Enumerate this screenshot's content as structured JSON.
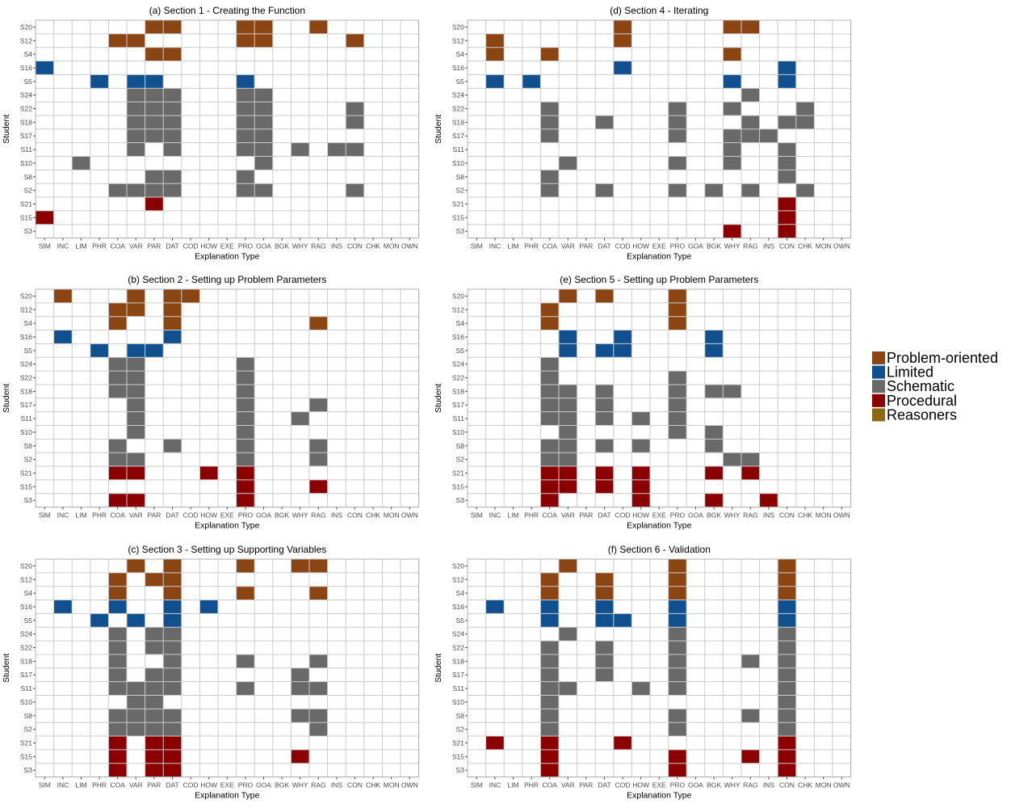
{
  "chart_data": {
    "type": "heatmap",
    "xlabel": "Explanation Type",
    "ylabel": "Student",
    "x_categories": [
      "SIM",
      "INC",
      "LIM",
      "PHR",
      "COA",
      "VAR",
      "PAR",
      "DAT",
      "COD",
      "HOW",
      "EXE",
      "PRO",
      "GOA",
      "BGK",
      "WHY",
      "RAG",
      "INS",
      "CON",
      "CHK",
      "MON",
      "OWN"
    ],
    "y_categories": [
      "S20",
      "S12",
      "S4",
      "S16",
      "S5",
      "S24",
      "S22",
      "S18",
      "S17",
      "S11",
      "S10",
      "S8",
      "S2",
      "S21",
      "S15",
      "S3"
    ],
    "legend": {
      "placement": "right",
      "items": [
        {
          "key": "P",
          "label": "Problem-oriented",
          "color": "#8b4513"
        },
        {
          "key": "L",
          "label": "Limited",
          "color": "#10508f"
        },
        {
          "key": "S",
          "label": "Schematic",
          "color": "#696969"
        },
        {
          "key": "R",
          "label": "Procedural",
          "color": "#8b0000"
        },
        {
          "key": "N",
          "label": "Reasoners",
          "color": "#8b6914"
        }
      ]
    },
    "panels": [
      {
        "title": "(a) Section 1 - Creating the Function",
        "rows": {
          "S20": {
            "PAR": "P",
            "DAT": "P",
            "PRO": "P",
            "GOA": "P",
            "RAG": "P"
          },
          "S12": {
            "COA": "P",
            "VAR": "P",
            "PRO": "P",
            "GOA": "P",
            "CON": "P"
          },
          "S4": {
            "PAR": "P",
            "DAT": "P"
          },
          "S16": {
            "SIM": "L"
          },
          "S5": {
            "PHR": "L",
            "VAR": "L",
            "PAR": "L",
            "PRO": "L"
          },
          "S24": {
            "VAR": "S",
            "PAR": "S",
            "DAT": "S",
            "PRO": "S",
            "GOA": "S"
          },
          "S22": {
            "VAR": "S",
            "PAR": "S",
            "DAT": "S",
            "PRO": "S",
            "GOA": "S",
            "CON": "S"
          },
          "S18": {
            "VAR": "S",
            "PAR": "S",
            "DAT": "S",
            "PRO": "S",
            "GOA": "S",
            "CON": "S"
          },
          "S17": {
            "VAR": "S",
            "PAR": "S",
            "DAT": "S",
            "PRO": "S",
            "GOA": "S"
          },
          "S11": {
            "VAR": "S",
            "DAT": "S",
            "PRO": "S",
            "GOA": "S",
            "WHY": "S",
            "INS": "S",
            "CON": "S"
          },
          "S10": {
            "LIM": "S",
            "GOA": "S"
          },
          "S8": {
            "PAR": "S",
            "DAT": "S",
            "PRO": "S"
          },
          "S2": {
            "COA": "S",
            "VAR": "S",
            "PAR": "S",
            "DAT": "S",
            "PRO": "S",
            "GOA": "S",
            "CON": "S"
          },
          "S21": {
            "PAR": "R"
          },
          "S15": {
            "SIM": "R"
          },
          "S3": {}
        }
      },
      {
        "title": "(d) Section 4 - Iterating",
        "rows": {
          "S20": {
            "COD": "P",
            "WHY": "P",
            "RAG": "P"
          },
          "S12": {
            "INC": "P",
            "COD": "P"
          },
          "S4": {
            "INC": "P",
            "COA": "P",
            "WHY": "P"
          },
          "S16": {
            "COD": "L",
            "CON": "L"
          },
          "S5": {
            "INC": "L",
            "PHR": "L",
            "WHY": "L",
            "CON": "L"
          },
          "S24": {
            "RAG": "S"
          },
          "S22": {
            "COA": "S",
            "PRO": "S",
            "WHY": "S",
            "CHK": "S"
          },
          "S18": {
            "COA": "S",
            "DAT": "S",
            "PRO": "S",
            "RAG": "S",
            "CON": "S",
            "CHK": "S"
          },
          "S17": {
            "COA": "S",
            "PRO": "S",
            "WHY": "S",
            "RAG": "S",
            "INS": "S"
          },
          "S11": {
            "WHY": "S",
            "CON": "S"
          },
          "S10": {
            "VAR": "S",
            "PRO": "S",
            "WHY": "S",
            "CON": "S"
          },
          "S8": {
            "COA": "S",
            "CON": "S"
          },
          "S2": {
            "COA": "S",
            "DAT": "S",
            "PRO": "S",
            "BGK": "S",
            "RAG": "S",
            "CHK": "S"
          },
          "S21": {
            "CON": "R"
          },
          "S15": {
            "CON": "R"
          },
          "S3": {
            "WHY": "R",
            "CON": "R"
          }
        }
      },
      {
        "title": "(b) Section 2 - Setting up Problem Parameters",
        "rows": {
          "S20": {
            "INC": "P",
            "VAR": "P",
            "DAT": "P",
            "COD": "P"
          },
          "S12": {
            "COA": "P",
            "VAR": "P",
            "DAT": "P"
          },
          "S4": {
            "COA": "P",
            "DAT": "P",
            "RAG": "P"
          },
          "S16": {
            "INC": "L",
            "DAT": "L"
          },
          "S5": {
            "PHR": "L",
            "VAR": "L",
            "PAR": "L"
          },
          "S24": {
            "COA": "S",
            "VAR": "S",
            "PRO": "S"
          },
          "S22": {
            "COA": "S",
            "VAR": "S",
            "PRO": "S"
          },
          "S18": {
            "COA": "S",
            "VAR": "S",
            "PRO": "S"
          },
          "S17": {
            "VAR": "S",
            "PRO": "S",
            "RAG": "S"
          },
          "S11": {
            "VAR": "S",
            "PRO": "S",
            "WHY": "S"
          },
          "S10": {
            "VAR": "S",
            "PRO": "S"
          },
          "S8": {
            "COA": "S",
            "DAT": "S",
            "PRO": "S",
            "RAG": "S"
          },
          "S2": {
            "COA": "S",
            "VAR": "S",
            "PRO": "S",
            "RAG": "S"
          },
          "S21": {
            "COA": "R",
            "VAR": "R",
            "HOW": "R",
            "PRO": "R"
          },
          "S15": {
            "PRO": "R",
            "RAG": "R"
          },
          "S3": {
            "COA": "R",
            "VAR": "R",
            "PRO": "R"
          }
        }
      },
      {
        "title": "(e) Section 5 - Setting up Problem Parameters",
        "rows": {
          "S20": {
            "VAR": "P",
            "DAT": "P",
            "PRO": "P"
          },
          "S12": {
            "COA": "P",
            "PRO": "P"
          },
          "S4": {
            "COA": "P",
            "PRO": "P"
          },
          "S16": {
            "VAR": "L",
            "COD": "L",
            "BGK": "L"
          },
          "S5": {
            "VAR": "L",
            "DAT": "L",
            "COD": "L",
            "BGK": "L"
          },
          "S24": {
            "COA": "S"
          },
          "S22": {
            "COA": "S",
            "PRO": "S"
          },
          "S18": {
            "COA": "S",
            "VAR": "S",
            "DAT": "S",
            "PRO": "S",
            "BGK": "S",
            "WHY": "S"
          },
          "S17": {
            "COA": "S",
            "VAR": "S",
            "DAT": "S",
            "PRO": "S"
          },
          "S11": {
            "COA": "S",
            "VAR": "S",
            "DAT": "S",
            "HOW": "S",
            "PRO": "S"
          },
          "S10": {
            "VAR": "S",
            "PRO": "S",
            "BGK": "S"
          },
          "S8": {
            "COA": "S",
            "VAR": "S",
            "DAT": "S",
            "HOW": "S",
            "BGK": "S"
          },
          "S2": {
            "COA": "S",
            "VAR": "S",
            "WHY": "S",
            "RAG": "S"
          },
          "S21": {
            "COA": "R",
            "VAR": "R",
            "DAT": "R",
            "HOW": "R",
            "BGK": "R",
            "RAG": "R"
          },
          "S15": {
            "COA": "R",
            "VAR": "R",
            "DAT": "R",
            "HOW": "R"
          },
          "S3": {
            "COA": "R",
            "HOW": "R",
            "BGK": "R",
            "INS": "R"
          }
        }
      },
      {
        "title": "(c) Section 3 - Setting up Supporting Variables",
        "rows": {
          "S20": {
            "VAR": "P",
            "DAT": "P",
            "PRO": "P",
            "WHY": "P",
            "RAG": "P"
          },
          "S12": {
            "COA": "P",
            "PAR": "P",
            "DAT": "P"
          },
          "S4": {
            "COA": "P",
            "DAT": "P",
            "PRO": "P",
            "RAG": "P"
          },
          "S16": {
            "INC": "L",
            "COA": "L",
            "DAT": "L",
            "HOW": "L"
          },
          "S5": {
            "PHR": "L",
            "VAR": "L",
            "DAT": "L"
          },
          "S24": {
            "COA": "S",
            "PAR": "S",
            "DAT": "S"
          },
          "S22": {
            "COA": "S",
            "PAR": "S",
            "DAT": "S"
          },
          "S18": {
            "COA": "S",
            "DAT": "S",
            "PRO": "S",
            "RAG": "S"
          },
          "S17": {
            "COA": "S",
            "PAR": "S",
            "DAT": "S",
            "WHY": "S"
          },
          "S11": {
            "COA": "S",
            "VAR": "S",
            "PAR": "S",
            "DAT": "S",
            "PRO": "S",
            "WHY": "S",
            "RAG": "S"
          },
          "S10": {
            "VAR": "S",
            "PAR": "S"
          },
          "S8": {
            "COA": "S",
            "VAR": "S",
            "PAR": "S",
            "DAT": "S",
            "WHY": "S",
            "RAG": "S"
          },
          "S2": {
            "COA": "S",
            "VAR": "S",
            "PAR": "S",
            "DAT": "S",
            "RAG": "S"
          },
          "S21": {
            "COA": "R",
            "PAR": "R",
            "DAT": "R"
          },
          "S15": {
            "COA": "R",
            "PAR": "R",
            "DAT": "R",
            "WHY": "R"
          },
          "S3": {
            "COA": "R",
            "PAR": "R",
            "DAT": "R"
          }
        }
      },
      {
        "title": "(f) Section 6 - Validation",
        "rows": {
          "S20": {
            "VAR": "P",
            "PRO": "P",
            "CON": "P"
          },
          "S12": {
            "COA": "P",
            "DAT": "P",
            "PRO": "P",
            "CON": "P"
          },
          "S4": {
            "COA": "P",
            "DAT": "P",
            "PRO": "P",
            "CON": "P"
          },
          "S16": {
            "INC": "L",
            "COA": "L",
            "DAT": "L",
            "PRO": "L",
            "CON": "L"
          },
          "S5": {
            "COA": "L",
            "DAT": "L",
            "COD": "L",
            "PRO": "L",
            "CON": "L"
          },
          "S24": {
            "VAR": "S",
            "PRO": "S",
            "CON": "S"
          },
          "S22": {
            "COA": "S",
            "DAT": "S",
            "PRO": "S",
            "CON": "S"
          },
          "S18": {
            "COA": "S",
            "DAT": "S",
            "PRO": "S",
            "RAG": "S",
            "CON": "S"
          },
          "S17": {
            "COA": "S",
            "DAT": "S",
            "PRO": "S",
            "CON": "S"
          },
          "S11": {
            "COA": "S",
            "VAR": "S",
            "HOW": "S",
            "PRO": "S",
            "CON": "S"
          },
          "S10": {
            "COA": "S",
            "CON": "S"
          },
          "S8": {
            "COA": "S",
            "PRO": "S",
            "RAG": "S",
            "CON": "S"
          },
          "S2": {
            "COA": "S",
            "PRO": "S",
            "CON": "S"
          },
          "S21": {
            "INC": "R",
            "COA": "R",
            "COD": "R",
            "CON": "R"
          },
          "S15": {
            "COA": "R",
            "PRO": "R",
            "RAG": "R",
            "CON": "R"
          },
          "S3": {
            "COA": "R",
            "PRO": "R",
            "CON": "R"
          }
        }
      }
    ]
  }
}
